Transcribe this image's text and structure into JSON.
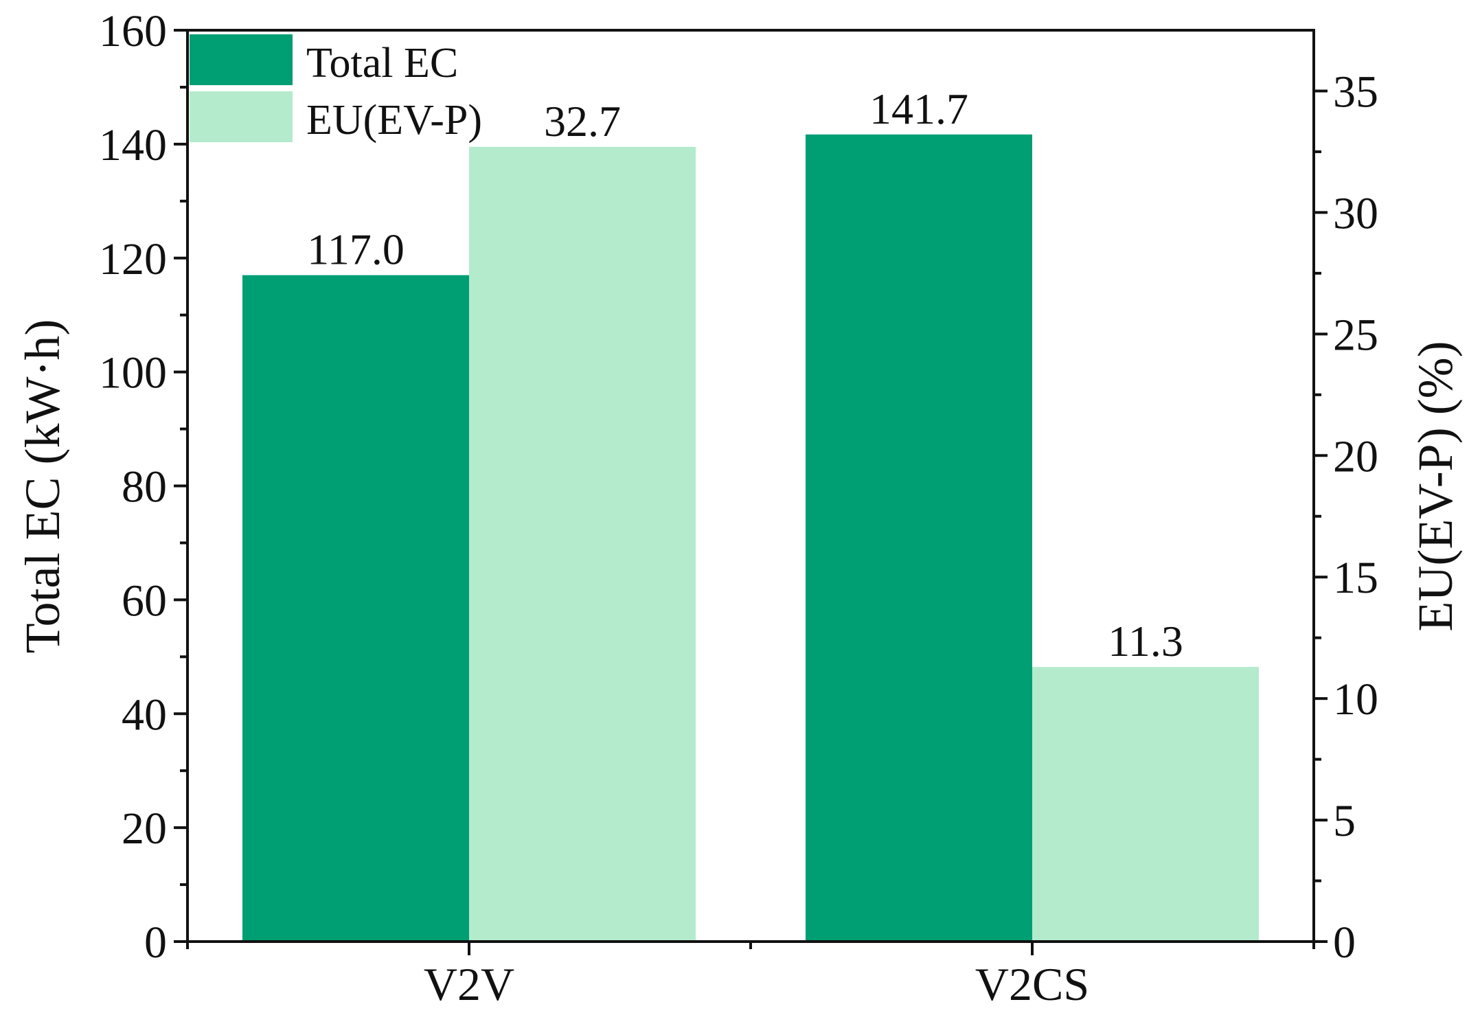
{
  "chart_data": {
    "type": "bar",
    "categories": [
      "V2V",
      "V2CS"
    ],
    "series": [
      {
        "name": "Total EC",
        "axis": "left",
        "color": "#009e73",
        "values": [
          117.0,
          141.7
        ],
        "labels": [
          "117.0",
          "141.7"
        ]
      },
      {
        "name": "EU(EV-P)",
        "axis": "right",
        "color": "#b3ebcc",
        "values": [
          32.7,
          11.3
        ],
        "labels": [
          "32.7",
          "11.3"
        ]
      }
    ],
    "ylabel": "Total EC (kW·h)",
    "ylim": [
      0,
      160
    ],
    "yticks": [
      "0",
      "20",
      "40",
      "60",
      "80",
      "100",
      "120",
      "140",
      "160"
    ],
    "y2label": "EU(EV-P) (%)",
    "y2lim": [
      0,
      37.5
    ],
    "y2ticks": [
      "0",
      "5",
      "10",
      "15",
      "20",
      "25",
      "30",
      "35"
    ],
    "grid": false,
    "legend": "top-left"
  }
}
